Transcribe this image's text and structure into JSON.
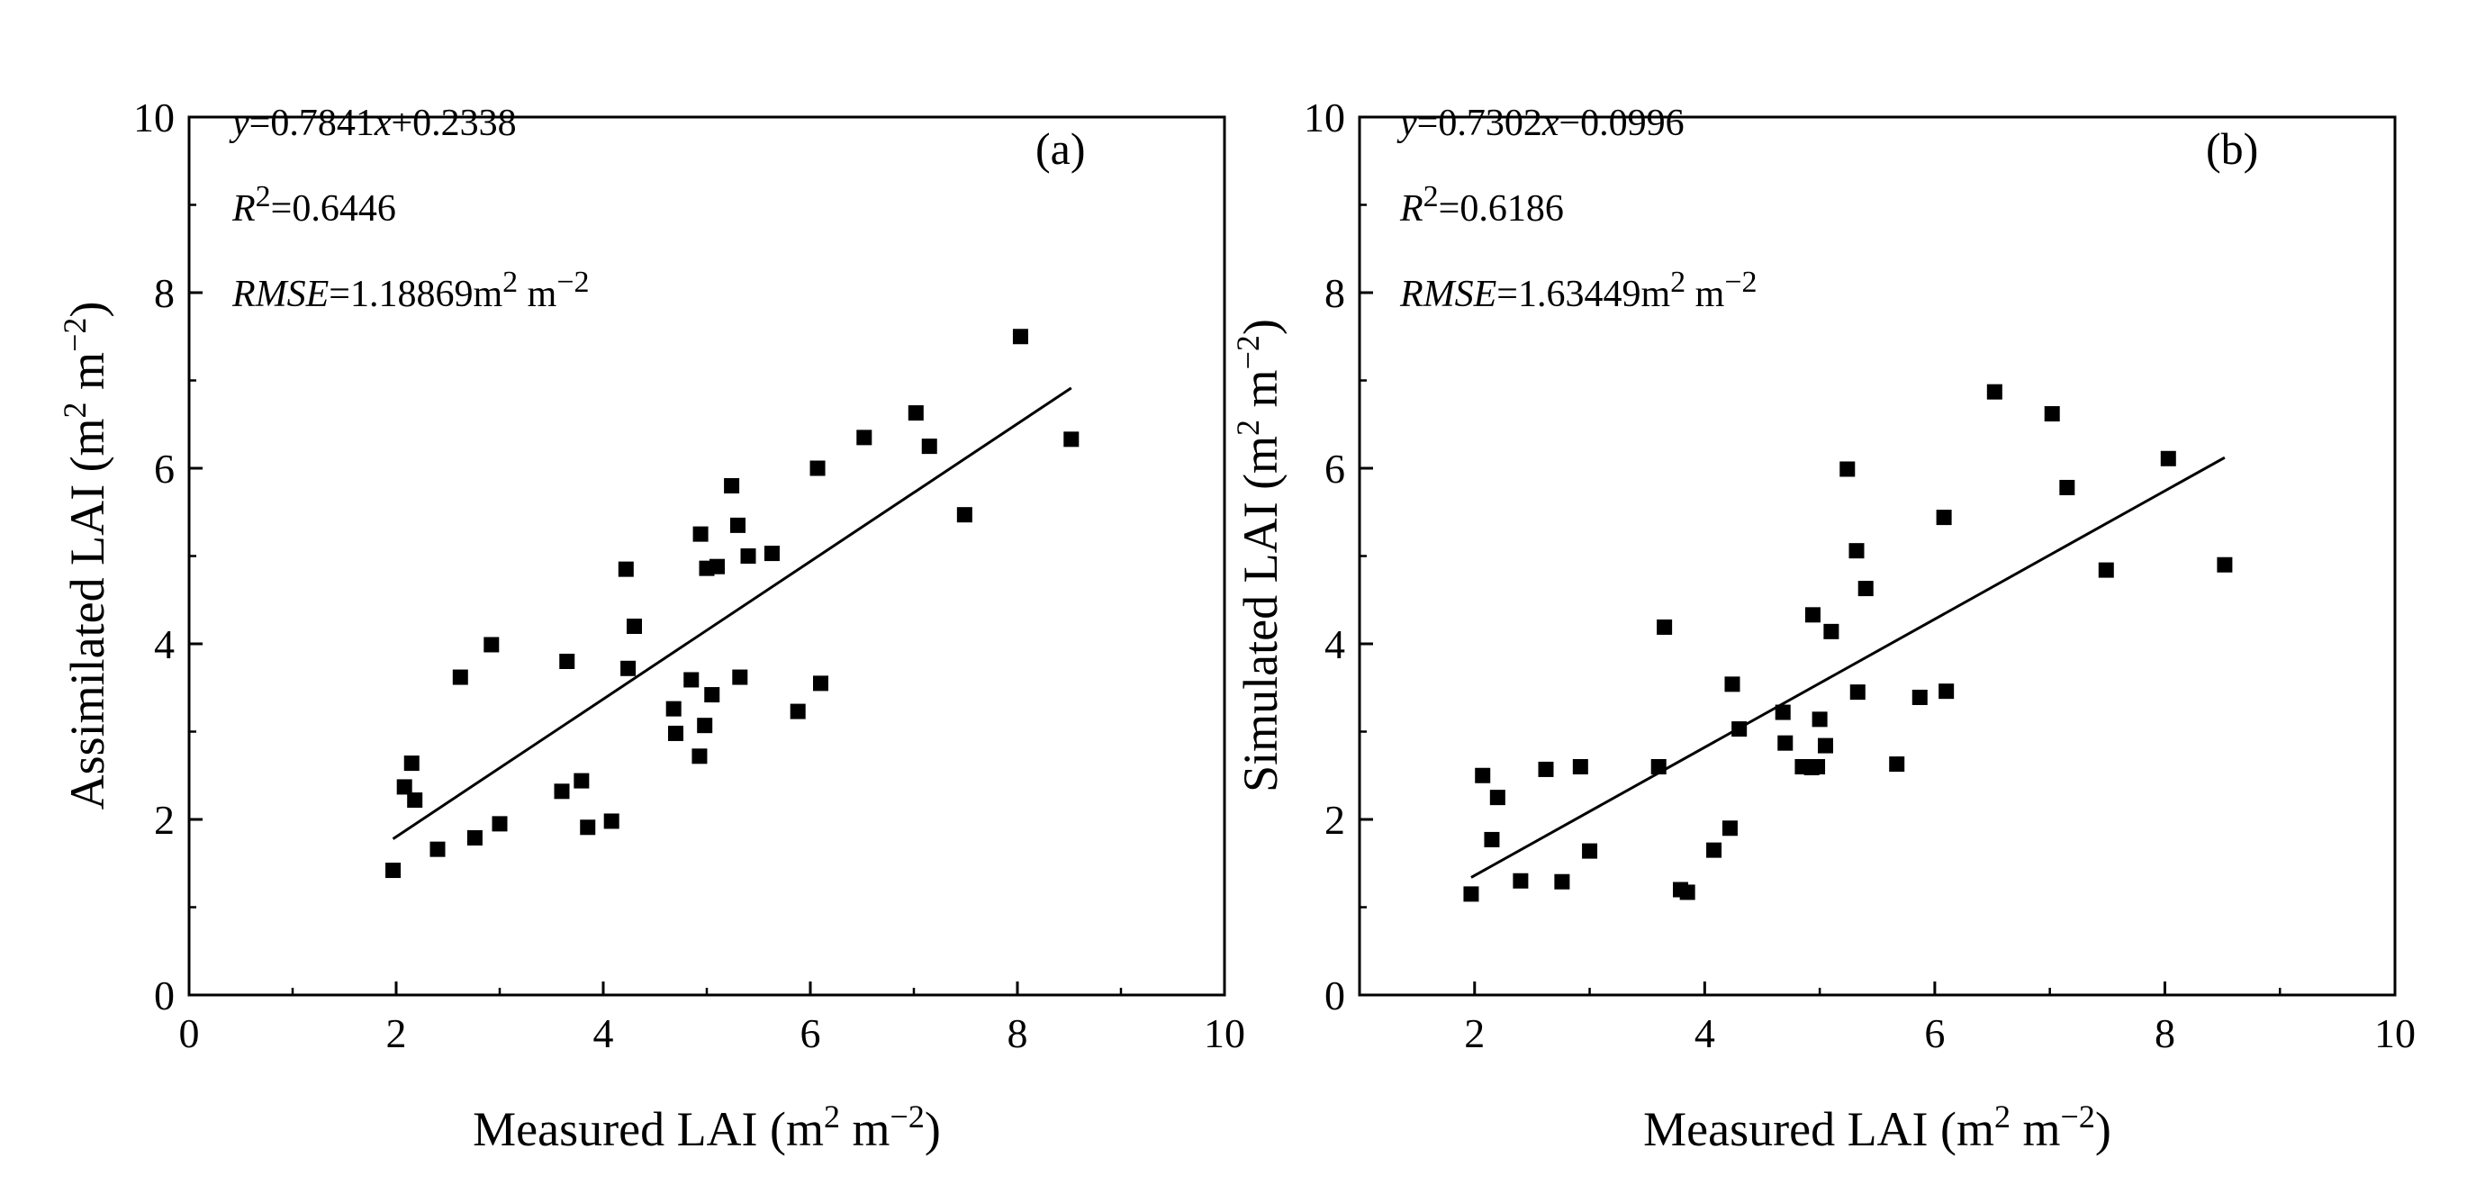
{
  "chart_data": [
    {
      "type": "scatter",
      "panel_label": "(a)",
      "xlabel": {
        "main": "Measured LAI (m",
        "sup1": "2",
        "mid": " m",
        "sup2": "−2",
        "end": ")"
      },
      "ylabel": {
        "main": "Assimilated LAI (m",
        "sup1": "2",
        "mid": " m",
        "sup2": "−2",
        "end": ")"
      },
      "xlim": [
        0,
        10
      ],
      "ylim": [
        0,
        10
      ],
      "xticks": [
        0,
        2,
        4,
        6,
        8,
        10
      ],
      "yticks": [
        0,
        2,
        4,
        6,
        8,
        10
      ],
      "xtick_labels": [
        "0",
        "2",
        "4",
        "6",
        "8",
        "10"
      ],
      "ytick_labels": [
        "0",
        "2",
        "4",
        "6",
        "8",
        "10"
      ],
      "annotations": {
        "equation": {
          "y": "y",
          "eq": "=0.7841",
          "x": "x",
          "rest": "+0.2338"
        },
        "r2": {
          "r": "R",
          "sup": "2",
          "val": "=0.6446"
        },
        "rmse": {
          "name": "RMSE",
          "val": "=1.18869m",
          "sup1": "2",
          "mid": " m",
          "sup2": "−2"
        }
      },
      "fit": {
        "slope": 0.7841,
        "intercept": 0.2338,
        "x_range": [
          1.97,
          8.52
        ]
      },
      "x": [
        1.97,
        2.08,
        2.15,
        2.18,
        2.4,
        2.62,
        2.76,
        2.92,
        3.0,
        3.6,
        3.65,
        3.79,
        3.85,
        4.08,
        4.22,
        4.24,
        4.3,
        4.68,
        4.7,
        4.85,
        4.93,
        4.94,
        4.98,
        5.0,
        5.05,
        5.1,
        5.24,
        5.3,
        5.32,
        5.4,
        5.63,
        5.88,
        6.07,
        6.1,
        6.52,
        7.02,
        7.15,
        7.49,
        8.03,
        8.52
      ],
      "y": [
        1.42,
        2.37,
        2.64,
        2.22,
        1.66,
        3.62,
        1.79,
        3.99,
        1.95,
        2.32,
        3.8,
        2.44,
        1.91,
        1.98,
        4.85,
        3.72,
        4.2,
        3.26,
        2.98,
        3.59,
        2.72,
        5.25,
        3.07,
        4.86,
        3.42,
        4.88,
        5.8,
        5.35,
        3.62,
        5.0,
        5.03,
        3.23,
        6.0,
        3.55,
        6.35,
        6.63,
        6.25,
        5.47,
        7.5,
        6.33
      ]
    },
    {
      "type": "scatter",
      "panel_label": "(b)",
      "xlabel": {
        "main": "Measured LAI (m",
        "sup1": "2",
        "mid": " m",
        "sup2": "−2",
        "end": ")"
      },
      "ylabel": {
        "main": "Simulated LAI (m",
        "sup1": "2",
        "mid": " m",
        "sup2": "−2",
        "end": ")"
      },
      "xlim": [
        1,
        10
      ],
      "ylim": [
        0,
        10
      ],
      "xticks": [
        2,
        4,
        6,
        8,
        10
      ],
      "yticks": [
        0,
        2,
        4,
        6,
        8,
        10
      ],
      "xtick_labels": [
        "2",
        "4",
        "6",
        "8",
        "10"
      ],
      "ytick_labels": [
        "0",
        "2",
        "4",
        "6",
        "8",
        "10"
      ],
      "annotations": {
        "equation": {
          "y": "y",
          "eq": "=0.7302",
          "x": "x",
          "rest": "−0.0996"
        },
        "r2": {
          "r": "R",
          "sup": "2",
          "val": "=0.6186"
        },
        "rmse": {
          "name": "RMSE",
          "val": "=1.63449m",
          "sup1": "2",
          "mid": " m",
          "sup2": "−2"
        }
      },
      "fit": {
        "slope": 0.7302,
        "intercept": -0.0996,
        "x_range": [
          1.97,
          8.52
        ]
      },
      "x": [
        1.97,
        2.07,
        2.15,
        2.2,
        2.4,
        2.62,
        2.76,
        2.92,
        3.0,
        3.6,
        3.65,
        3.79,
        3.85,
        4.08,
        4.22,
        4.24,
        4.3,
        4.68,
        4.7,
        4.85,
        4.93,
        4.94,
        4.98,
        5.0,
        5.05,
        5.1,
        5.24,
        5.32,
        5.33,
        5.4,
        5.67,
        5.87,
        6.08,
        6.1,
        6.52,
        7.02,
        7.15,
        7.49,
        8.03,
        8.52
      ],
      "y": [
        1.15,
        2.5,
        1.77,
        2.25,
        1.3,
        2.57,
        1.29,
        2.6,
        1.64,
        2.6,
        4.19,
        1.2,
        1.17,
        1.65,
        1.9,
        3.54,
        3.03,
        3.22,
        2.87,
        2.6,
        2.59,
        4.33,
        2.6,
        3.14,
        2.84,
        4.14,
        5.99,
        5.06,
        3.45,
        4.63,
        2.63,
        3.39,
        5.44,
        3.46,
        6.87,
        6.62,
        5.78,
        4.84,
        6.11,
        4.9
      ]
    }
  ]
}
